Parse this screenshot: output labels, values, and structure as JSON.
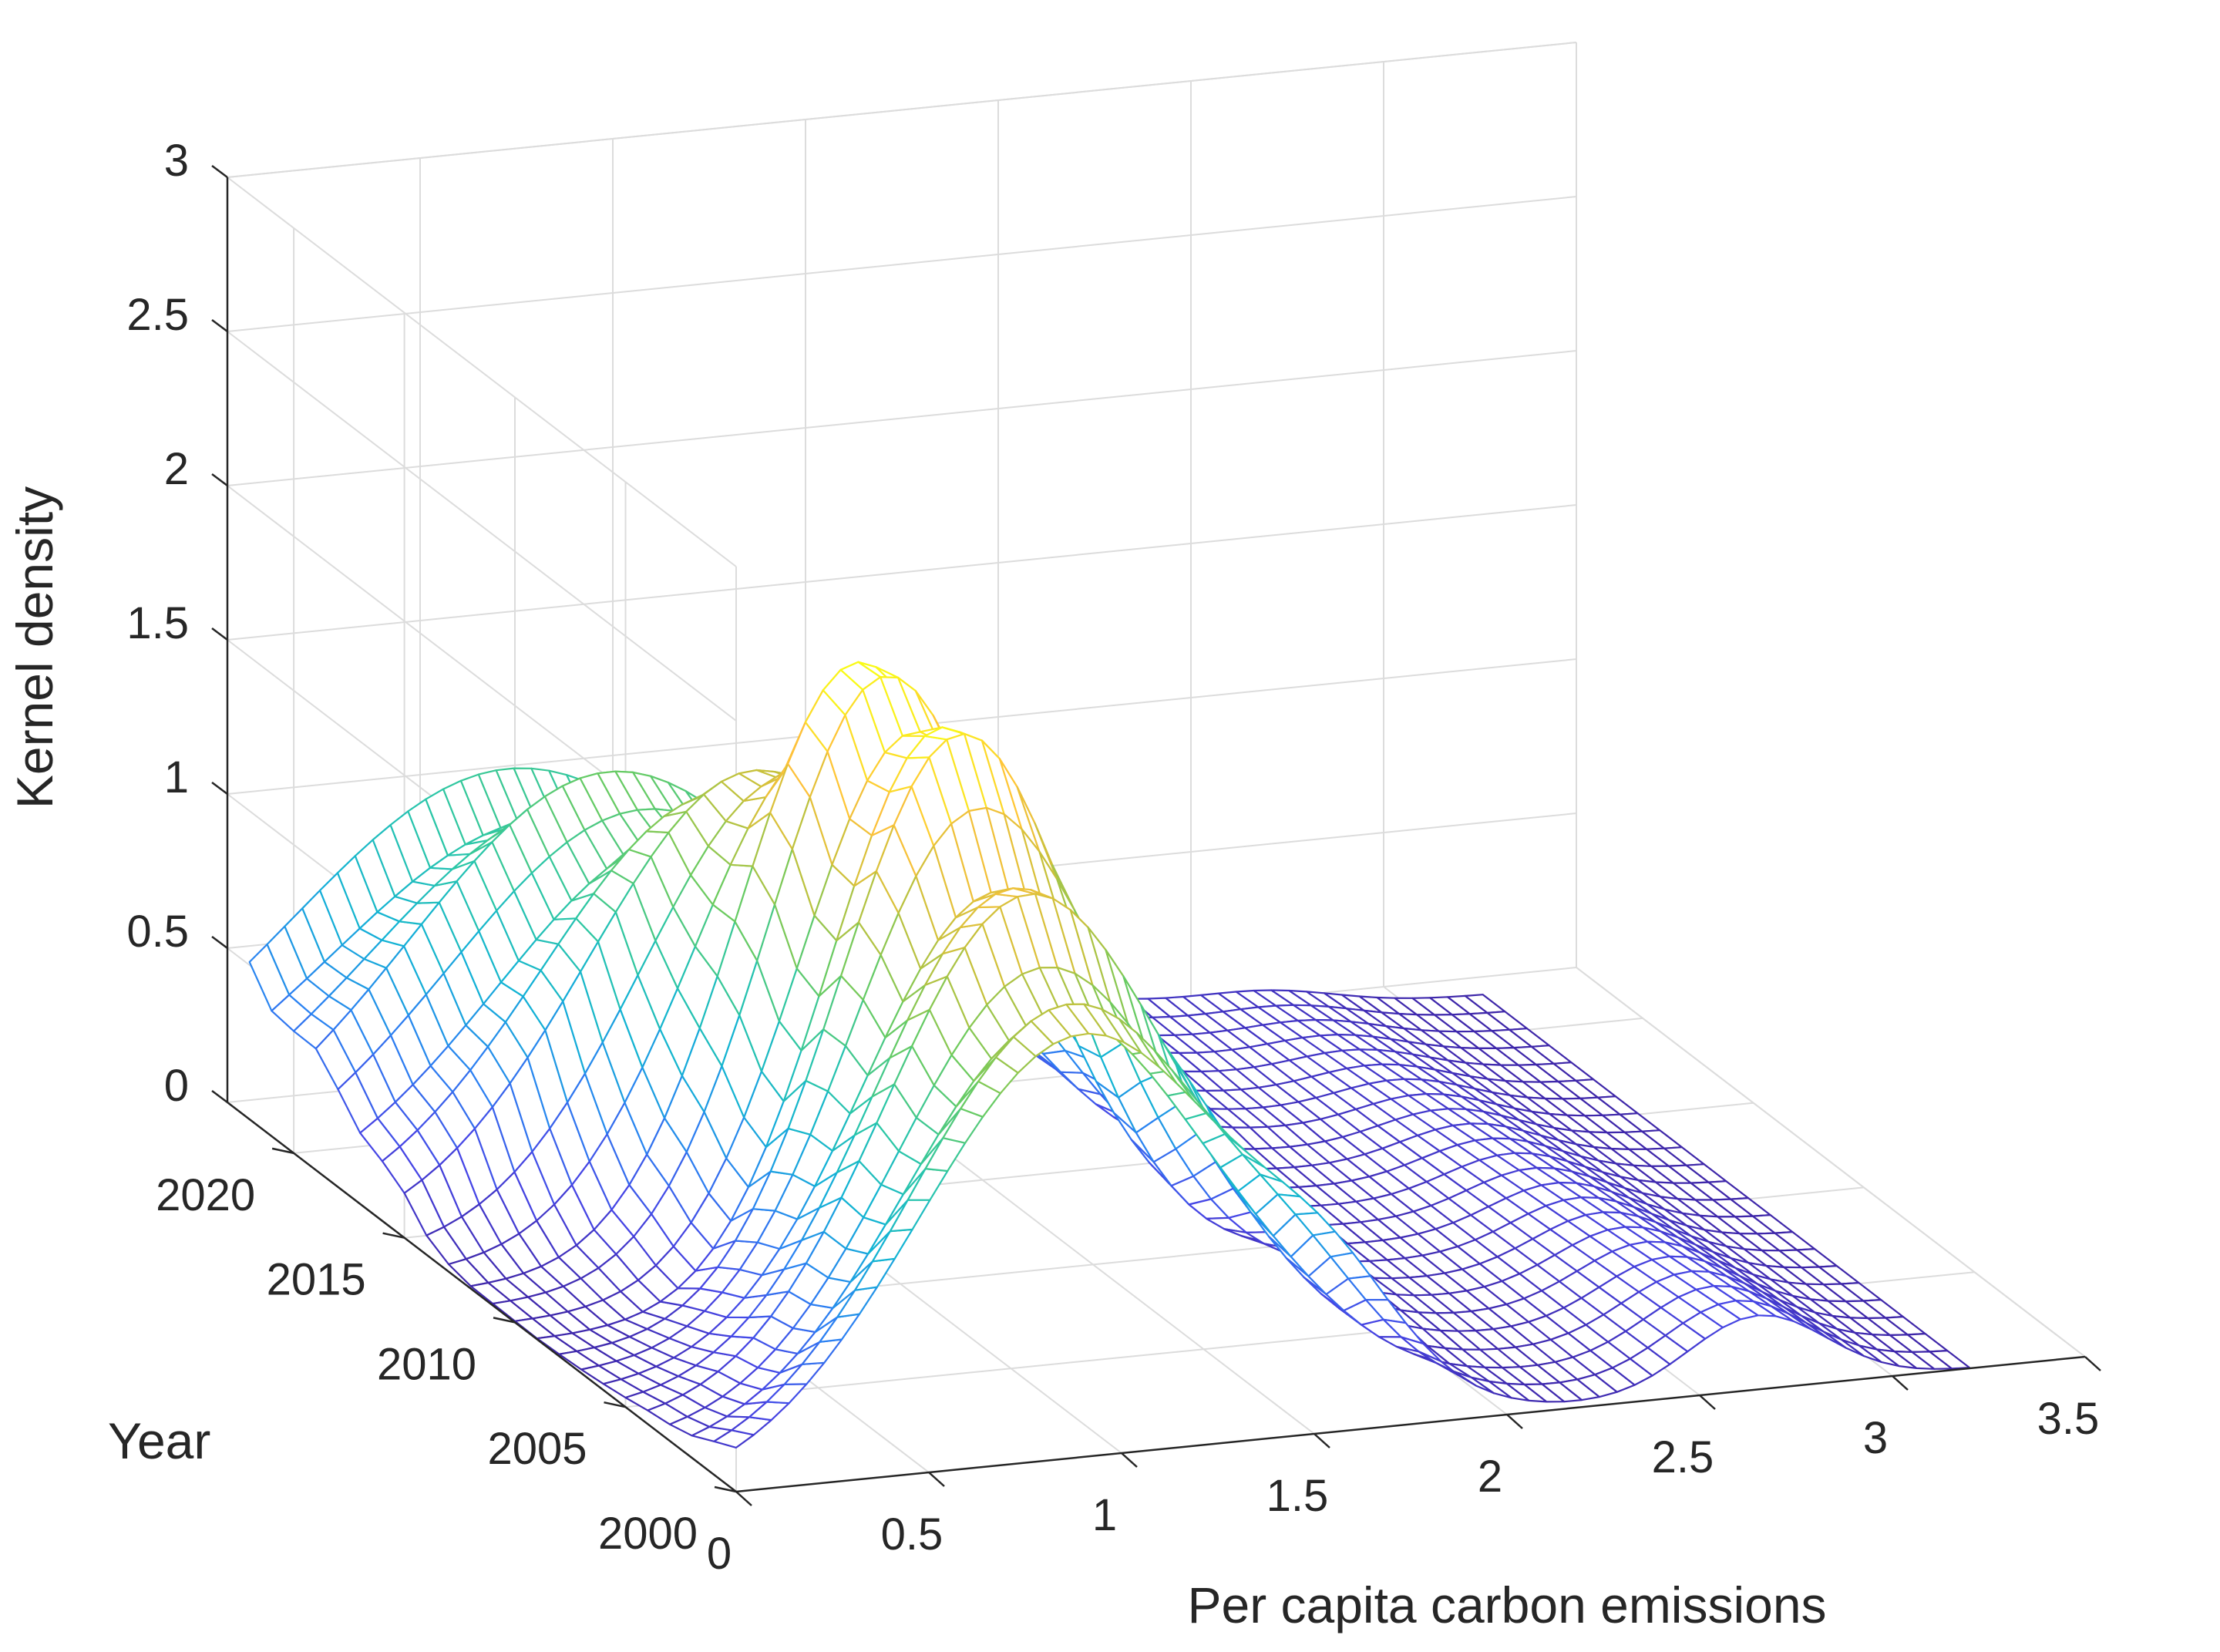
{
  "chart_data": {
    "type": "surface",
    "render": "3d-mesh",
    "title": "",
    "xlabel": "Per capita carbon emissions",
    "ylabel": "Year",
    "zlabel": "Kernel density",
    "xlim": [
      0,
      3.5
    ],
    "ylim": [
      2000,
      2023
    ],
    "zlim": [
      0,
      3
    ],
    "x_ticks": [
      "0",
      "0.5",
      "1",
      "1.5",
      "2",
      "2.5",
      "3",
      "3.5"
    ],
    "y_ticks": [
      "2000",
      "2005",
      "2010",
      "2015",
      "2020"
    ],
    "z_ticks": [
      "0",
      "0.5",
      "1",
      "1.5",
      "2",
      "2.5",
      "3"
    ],
    "x_data_range": [
      0,
      3.2
    ],
    "colormap": [
      "#3e26a8",
      "#4646e6",
      "#2b82f2",
      "#12b3d5",
      "#2cc7a5",
      "#6ccb5f",
      "#c7c13b",
      "#ffc13a",
      "#f9fb15"
    ],
    "years": [
      2000,
      2001,
      2002,
      2003,
      2004,
      2005,
      2006,
      2007,
      2008,
      2009,
      2010,
      2011,
      2012,
      2013,
      2014,
      2015,
      2016,
      2017,
      2018,
      2019,
      2020,
      2021,
      2022
    ],
    "series_params": [
      {
        "year": 2000,
        "mode_x": 0.9,
        "peak": 1.3
      },
      {
        "year": 2003,
        "mode_x": 0.97,
        "peak": 1.45
      },
      {
        "year": 2006,
        "mode_x": 1.02,
        "peak": 1.58
      },
      {
        "year": 2009,
        "mode_x": 1.05,
        "peak": 1.88
      },
      {
        "year": 2012,
        "mode_x": 1.0,
        "peak": 1.82
      },
      {
        "year": 2015,
        "mode_x": 0.9,
        "peak": 1.3
      },
      {
        "year": 2018,
        "mode_x": 0.78,
        "peak": 1.12
      },
      {
        "year": 2022,
        "mode_x": 0.66,
        "peak": 1.0
      }
    ],
    "secondary_bumps": [
      {
        "x": 1.55,
        "height": 0.22
      },
      {
        "x": 2.65,
        "height": 0.2
      }
    ]
  }
}
